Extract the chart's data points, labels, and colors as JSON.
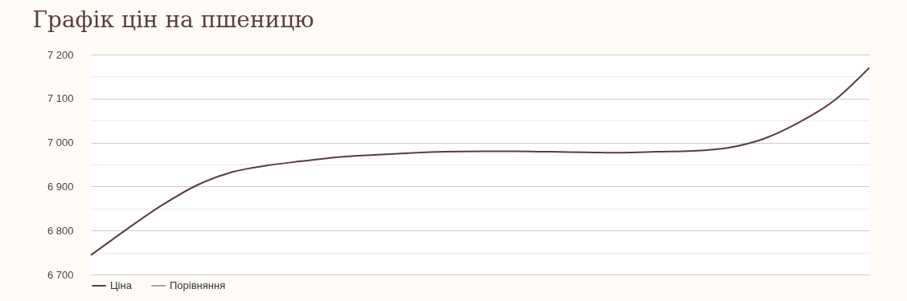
{
  "chart_data": {
    "type": "line",
    "title": "Графік цін на пшеницю",
    "categories": [
      null,
      null,
      null,
      null,
      null,
      null,
      null,
      null,
      null,
      null,
      null,
      null,
      null,
      null,
      null,
      null,
      null,
      null,
      null,
      null,
      null,
      null,
      null
    ],
    "series": [
      {
        "name": "Ціна",
        "color": "#5b3d38",
        "values": [
          6744,
          6802,
          6857,
          6903,
          6933,
          6948,
          6958,
          6967,
          6972,
          6976,
          6979,
          6980,
          6980,
          6979,
          6978,
          6977,
          6979,
          6981,
          6988,
          7008,
          7045,
          7095,
          7170
        ]
      },
      {
        "name": "Порівняння",
        "color": "#aaa69c",
        "values": [
          null,
          null,
          null,
          null,
          null,
          null,
          null,
          null,
          null,
          null,
          null,
          null,
          null,
          null,
          null,
          null,
          null,
          null,
          null,
          null,
          null,
          null,
          null
        ]
      }
    ],
    "ylim": [
      6700,
      7200
    ],
    "yticks": [
      {
        "value": 6700,
        "label": "6 700"
      },
      {
        "value": 6750,
        "label": null
      },
      {
        "value": 6800,
        "label": "6 800"
      },
      {
        "value": 6850,
        "label": null
      },
      {
        "value": 6900,
        "label": "6 900"
      },
      {
        "value": 6950,
        "label": null
      },
      {
        "value": 7000,
        "label": "7 000"
      },
      {
        "value": 7050,
        "label": null
      },
      {
        "value": 7100,
        "label": "7 100"
      },
      {
        "value": 7150,
        "label": null
      },
      {
        "value": 7200,
        "label": "7 200"
      }
    ],
    "grid": "y",
    "legend": "bottom",
    "tick_labels": "y",
    "marker": "none",
    "line_style": "solid"
  }
}
